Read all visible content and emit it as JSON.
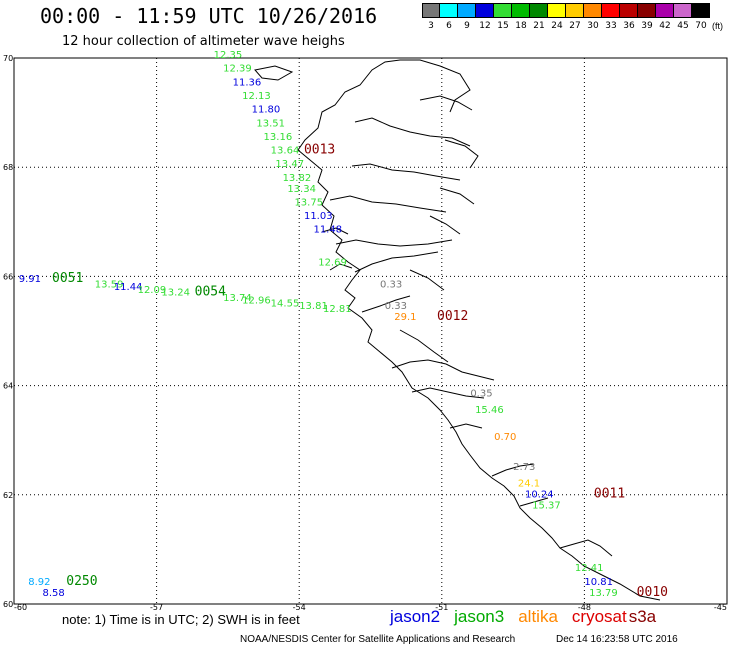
{
  "title": "00:00 - 11:59 UTC 10/26/2016",
  "subtitle": "12 hour collection of altimeter wave heighs",
  "legend": {
    "unit": "(ft)",
    "items": [
      {
        "label": "3",
        "color": "#777777"
      },
      {
        "label": "6",
        "color": "#00ffff"
      },
      {
        "label": "9",
        "color": "#00aaff"
      },
      {
        "label": "12",
        "color": "#0000dd"
      },
      {
        "label": "15",
        "color": "#33dd33"
      },
      {
        "label": "18",
        "color": "#00bb00"
      },
      {
        "label": "21",
        "color": "#008800"
      },
      {
        "label": "24",
        "color": "#ffff00"
      },
      {
        "label": "27",
        "color": "#ffcc00"
      },
      {
        "label": "30",
        "color": "#ff8800"
      },
      {
        "label": "33",
        "color": "#ff0000"
      },
      {
        "label": "36",
        "color": "#bb0000"
      },
      {
        "label": "39",
        "color": "#880000"
      },
      {
        "label": "42",
        "color": "#aa00aa"
      },
      {
        "label": "45",
        "color": "#cc66cc"
      },
      {
        "label": "70",
        "color": "#000000"
      }
    ]
  },
  "axes": {
    "lat_labels": [
      "70",
      "68",
      "66",
      "64",
      "62",
      "60"
    ],
    "lon_labels": [
      "-60",
      "-57",
      "-54",
      "-51",
      "-48",
      "-45"
    ]
  },
  "wave_labels": [
    {
      "text": "12.35",
      "color": "#33dd33",
      "lon": -55.8,
      "lat": 70.0
    },
    {
      "text": "12.39",
      "color": "#33dd33",
      "lon": -55.6,
      "lat": 69.75
    },
    {
      "text": "11.36",
      "color": "#0000dd",
      "lon": -55.4,
      "lat": 69.5
    },
    {
      "text": "12.13",
      "color": "#33dd33",
      "lon": -55.2,
      "lat": 69.25
    },
    {
      "text": "11.80",
      "color": "#0000dd",
      "lon": -55.0,
      "lat": 69.0
    },
    {
      "text": "13.51",
      "color": "#33dd33",
      "lon": -54.9,
      "lat": 68.75
    },
    {
      "text": "13.16",
      "color": "#33dd33",
      "lon": -54.75,
      "lat": 68.5
    },
    {
      "text": "13.64",
      "color": "#33dd33",
      "lon": -54.6,
      "lat": 68.25
    },
    {
      "text": "0013",
      "color": "#880000",
      "lon": -53.9,
      "lat": 68.25
    },
    {
      "text": "13.47",
      "color": "#33dd33",
      "lon": -54.5,
      "lat": 68.0
    },
    {
      "text": "13.82",
      "color": "#33dd33",
      "lon": -54.35,
      "lat": 67.75
    },
    {
      "text": "13.34",
      "color": "#33dd33",
      "lon": -54.25,
      "lat": 67.55
    },
    {
      "text": "13.75",
      "color": "#33dd33",
      "lon": -54.1,
      "lat": 67.3
    },
    {
      "text": "11.03",
      "color": "#0000dd",
      "lon": -53.9,
      "lat": 67.05
    },
    {
      "text": "11.48",
      "color": "#0000dd",
      "lon": -53.7,
      "lat": 66.8
    },
    {
      "text": "9.91",
      "color": "#0000dd",
      "lon": -59.9,
      "lat": 65.9
    },
    {
      "text": "0051",
      "color": "#008800",
      "lon": -59.2,
      "lat": 65.9
    },
    {
      "text": "13.59",
      "color": "#33dd33",
      "lon": -58.3,
      "lat": 65.8
    },
    {
      "text": "11.44",
      "color": "#0000dd",
      "lon": -57.9,
      "lat": 65.75
    },
    {
      "text": "12.09",
      "color": "#33dd33",
      "lon": -57.4,
      "lat": 65.7
    },
    {
      "text": "13.24",
      "color": "#33dd33",
      "lon": -56.9,
      "lat": 65.65
    },
    {
      "text": "0054",
      "color": "#008800",
      "lon": -56.2,
      "lat": 65.65
    },
    {
      "text": "13.74",
      "color": "#33dd33",
      "lon": -55.6,
      "lat": 65.55
    },
    {
      "text": "12.96",
      "color": "#33dd33",
      "lon": -55.2,
      "lat": 65.5
    },
    {
      "text": "14.55",
      "color": "#33dd33",
      "lon": -54.6,
      "lat": 65.45
    },
    {
      "text": "13.81",
      "color": "#33dd33",
      "lon": -54.0,
      "lat": 65.4
    },
    {
      "text": "12.81",
      "color": "#33dd33",
      "lon": -53.5,
      "lat": 65.35
    },
    {
      "text": "12.69",
      "color": "#33dd33",
      "lon": -53.6,
      "lat": 66.2
    },
    {
      "text": "0.33",
      "color": "#777777",
      "lon": -52.3,
      "lat": 65.8
    },
    {
      "text": "0.33",
      "color": "#777777",
      "lon": -52.2,
      "lat": 65.4
    },
    {
      "text": "29.1",
      "color": "#ff8800",
      "lon": -52.0,
      "lat": 65.2
    },
    {
      "text": "0012",
      "color": "#880000",
      "lon": -51.1,
      "lat": 65.2
    },
    {
      "text": "0.35",
      "color": "#777777",
      "lon": -50.4,
      "lat": 63.8
    },
    {
      "text": "15.46",
      "color": "#33dd33",
      "lon": -50.3,
      "lat": 63.5
    },
    {
      "text": "0.70",
      "color": "#ff8800",
      "lon": -49.9,
      "lat": 63.0
    },
    {
      "text": "2.73",
      "color": "#777777",
      "lon": -49.5,
      "lat": 62.45
    },
    {
      "text": "24.1",
      "color": "#ffcc00",
      "lon": -49.4,
      "lat": 62.15
    },
    {
      "text": "10.24",
      "color": "#0000dd",
      "lon": -49.25,
      "lat": 61.95
    },
    {
      "text": "0011",
      "color": "#880000",
      "lon": -47.8,
      "lat": 61.95
    },
    {
      "text": "15.37",
      "color": "#33dd33",
      "lon": -49.1,
      "lat": 61.75
    },
    {
      "text": "12.41",
      "color": "#33dd33",
      "lon": -48.2,
      "lat": 60.6
    },
    {
      "text": "10.81",
      "color": "#0000dd",
      "lon": -48.0,
      "lat": 60.35
    },
    {
      "text": "13.79",
      "color": "#33dd33",
      "lon": -47.9,
      "lat": 60.15
    },
    {
      "text": "0010",
      "color": "#880000",
      "lon": -46.9,
      "lat": 60.15
    },
    {
      "text": "8.92",
      "color": "#00aaff",
      "lon": -59.7,
      "lat": 60.35
    },
    {
      "text": "0250",
      "color": "#008800",
      "lon": -58.9,
      "lat": 60.35
    },
    {
      "text": "8.58",
      "color": "#0000dd",
      "lon": -59.4,
      "lat": 60.15
    }
  ],
  "footer": {
    "note": "note:  1) Time is in UTC;  2) SWH is in feet",
    "satellites": [
      {
        "name": "jason2",
        "color": "#0000dd"
      },
      {
        "name": "jason3",
        "color": "#00aa00"
      },
      {
        "name": "altika",
        "color": "#ff8800"
      },
      {
        "name": "cryosat",
        "color": "#dd0000"
      },
      {
        "name": "s3a",
        "color": "#880000"
      }
    ],
    "credit": "NOAA/NESDIS Center for Satellite Applications and Research",
    "timestamp": "Dec 14 16:23:58 UTC 2016"
  }
}
